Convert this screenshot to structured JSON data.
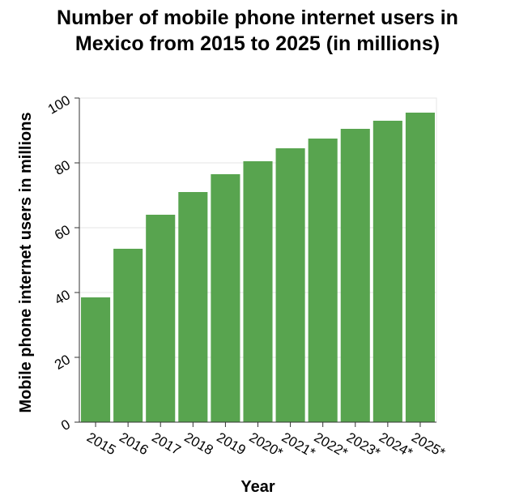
{
  "chart_data": {
    "type": "bar",
    "title_lines": [
      "Number of mobile phone internet users in",
      "Mexico from 2015 to 2025 (in millions)"
    ],
    "xlabel": "Year",
    "ylabel": "Mobile phone internet users in millions",
    "categories": [
      "2015",
      "2016",
      "2017",
      "2018",
      "2019",
      "2020*",
      "2021*",
      "2022*",
      "2023*",
      "2024*",
      "2025*"
    ],
    "values": [
      38.5,
      53.5,
      64,
      71,
      76.5,
      80.5,
      84.5,
      87.5,
      90.5,
      93,
      95.5
    ],
    "ylim": [
      0,
      100
    ],
    "yticks": [
      0,
      20,
      40,
      60,
      80,
      100
    ],
    "grid": true,
    "bar_color": "#58a44f",
    "grid_color": "#e5e5e5"
  }
}
